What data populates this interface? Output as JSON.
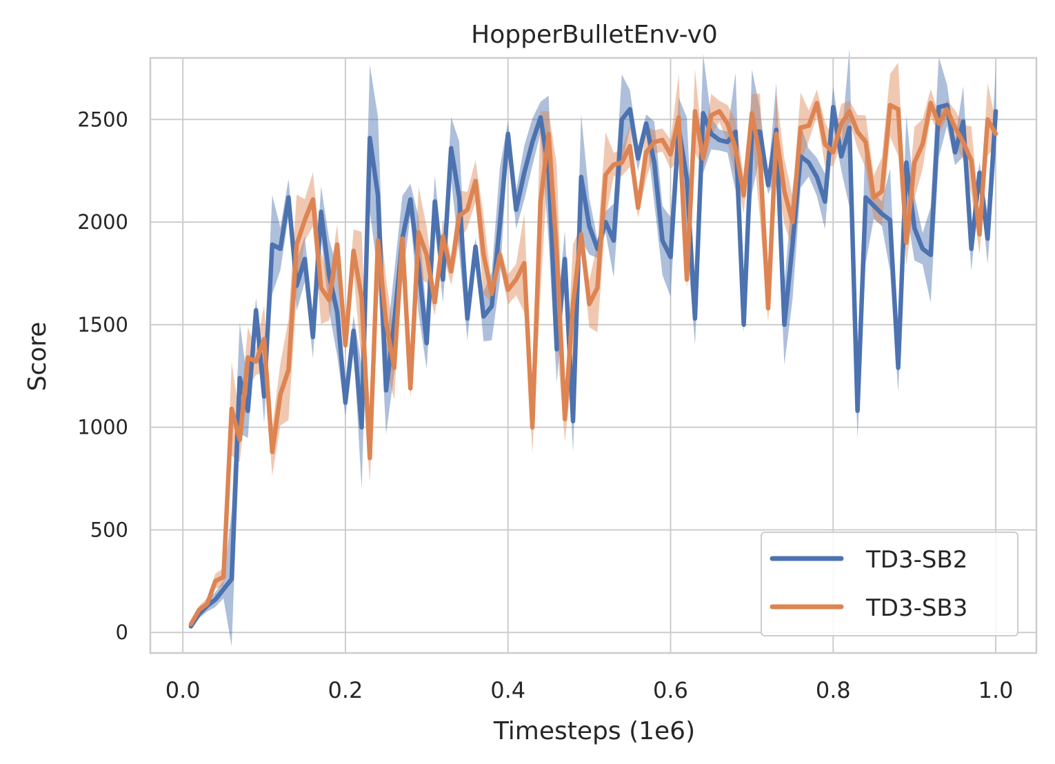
{
  "chart_data": {
    "type": "line",
    "title": "HopperBulletEnv-v0",
    "xlabel": "Timesteps (1e6)",
    "ylabel": "Score",
    "xlim": [
      -0.04,
      1.05
    ],
    "ylim": [
      -100,
      2800
    ],
    "xticks": [
      0.0,
      0.2,
      0.4,
      0.6,
      0.8,
      1.0
    ],
    "xtick_labels": [
      "0.0",
      "0.2",
      "0.4",
      "0.6",
      "0.8",
      "1.0"
    ],
    "yticks": [
      0,
      500,
      1000,
      1500,
      2000,
      2500
    ],
    "ytick_labels": [
      "0",
      "500",
      "1000",
      "1500",
      "2000",
      "2500"
    ],
    "grid": true,
    "legend_position": "bottom-right",
    "series": [
      {
        "name": "TD3-SB2",
        "color": "#4c72b0",
        "x": [
          0.01,
          0.02,
          0.03,
          0.04,
          0.05,
          0.06,
          0.07,
          0.08,
          0.09,
          0.1,
          0.11,
          0.12,
          0.13,
          0.14,
          0.15,
          0.16,
          0.17,
          0.18,
          0.19,
          0.2,
          0.21,
          0.22,
          0.23,
          0.24,
          0.25,
          0.26,
          0.27,
          0.28,
          0.29,
          0.3,
          0.31,
          0.32,
          0.33,
          0.34,
          0.35,
          0.36,
          0.37,
          0.38,
          0.39,
          0.4,
          0.41,
          0.42,
          0.43,
          0.44,
          0.45,
          0.46,
          0.47,
          0.48,
          0.49,
          0.5,
          0.51,
          0.52,
          0.53,
          0.54,
          0.55,
          0.56,
          0.57,
          0.58,
          0.59,
          0.6,
          0.61,
          0.62,
          0.63,
          0.64,
          0.65,
          0.66,
          0.67,
          0.68,
          0.69,
          0.7,
          0.71,
          0.72,
          0.73,
          0.74,
          0.75,
          0.76,
          0.77,
          0.78,
          0.79,
          0.8,
          0.81,
          0.82,
          0.83,
          0.84,
          0.85,
          0.86,
          0.87,
          0.88,
          0.89,
          0.9,
          0.91,
          0.92,
          0.93,
          0.94,
          0.95,
          0.96,
          0.97,
          0.98,
          0.99,
          1.0
        ],
        "y": [
          30,
          90,
          130,
          160,
          210,
          260,
          1240,
          1080,
          1570,
          1150,
          1890,
          1870,
          2120,
          1690,
          1820,
          1440,
          2050,
          1740,
          1560,
          1120,
          1470,
          1000,
          2410,
          2130,
          1180,
          1510,
          1920,
          2110,
          1790,
          1410,
          2100,
          1720,
          2360,
          2120,
          1530,
          1880,
          1540,
          1590,
          1990,
          2430,
          2060,
          2240,
          2390,
          2510,
          2260,
          1380,
          1820,
          1030,
          2220,
          1980,
          1870,
          2000,
          1910,
          2500,
          2550,
          2310,
          2480,
          2290,
          1910,
          1830,
          2460,
          2210,
          1530,
          2530,
          2430,
          2400,
          2390,
          2440,
          1500,
          2440,
          2440,
          2180,
          2450,
          1500,
          1890,
          2320,
          2290,
          2220,
          2100,
          2560,
          2320,
          2460,
          1080,
          2120,
          2080,
          2040,
          2010,
          1290,
          2290,
          1970,
          1870,
          1840,
          2560,
          2570,
          2340,
          2490,
          1870,
          2240,
          1920,
          2540
        ]
      },
      {
        "name": "TD3-SB3",
        "color": "#dd8452",
        "x": [
          0.01,
          0.02,
          0.03,
          0.04,
          0.05,
          0.06,
          0.07,
          0.08,
          0.09,
          0.1,
          0.11,
          0.12,
          0.13,
          0.14,
          0.15,
          0.16,
          0.17,
          0.18,
          0.19,
          0.2,
          0.21,
          0.22,
          0.23,
          0.24,
          0.25,
          0.26,
          0.27,
          0.28,
          0.29,
          0.3,
          0.31,
          0.32,
          0.33,
          0.34,
          0.35,
          0.36,
          0.37,
          0.38,
          0.39,
          0.4,
          0.41,
          0.42,
          0.43,
          0.44,
          0.45,
          0.46,
          0.47,
          0.48,
          0.49,
          0.5,
          0.51,
          0.52,
          0.53,
          0.54,
          0.55,
          0.56,
          0.57,
          0.58,
          0.59,
          0.6,
          0.61,
          0.62,
          0.63,
          0.64,
          0.65,
          0.66,
          0.67,
          0.68,
          0.69,
          0.7,
          0.71,
          0.72,
          0.73,
          0.74,
          0.75,
          0.76,
          0.77,
          0.78,
          0.79,
          0.8,
          0.81,
          0.82,
          0.83,
          0.84,
          0.85,
          0.86,
          0.87,
          0.88,
          0.89,
          0.9,
          0.91,
          0.92,
          0.93,
          0.94,
          0.95,
          0.96,
          0.97,
          0.98,
          0.99,
          1.0
        ],
        "y": [
          40,
          110,
          140,
          250,
          270,
          1090,
          940,
          1340,
          1320,
          1430,
          880,
          1160,
          1280,
          1890,
          2010,
          2110,
          1680,
          1620,
          1890,
          1400,
          1860,
          1630,
          850,
          1910,
          1510,
          1290,
          1920,
          1190,
          1950,
          1840,
          1610,
          1930,
          1760,
          2030,
          2060,
          2200,
          1840,
          1650,
          1840,
          1670,
          1720,
          1800,
          1000,
          2100,
          2430,
          1850,
          1040,
          1600,
          1940,
          1600,
          1680,
          2230,
          2280,
          2290,
          2370,
          2070,
          2340,
          2390,
          2400,
          2330,
          2510,
          1720,
          2540,
          2310,
          2520,
          2540,
          2480,
          2360,
          2130,
          2530,
          2320,
          1580,
          2430,
          2150,
          2000,
          2460,
          2470,
          2580,
          2380,
          2340,
          2480,
          2540,
          2440,
          2390,
          2120,
          2150,
          2570,
          2550,
          1900,
          2290,
          2380,
          2580,
          2480,
          2550,
          2460,
          2390,
          2300,
          1940,
          2500,
          2430
        ]
      }
    ]
  }
}
